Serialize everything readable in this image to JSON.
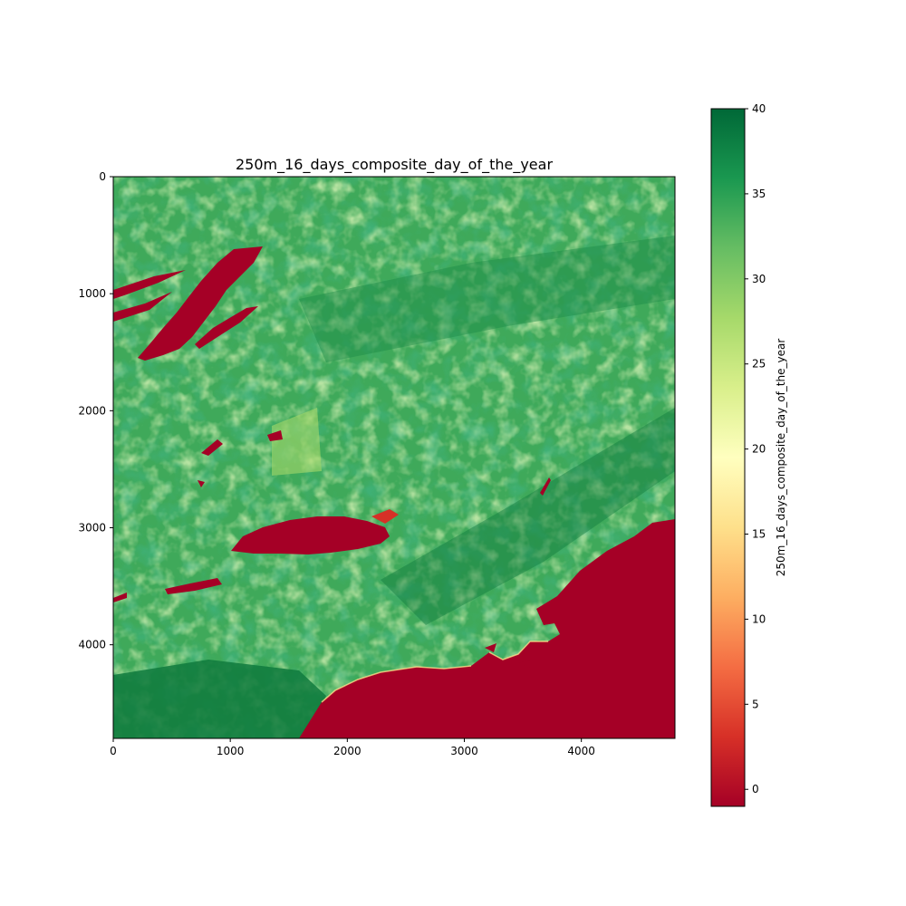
{
  "chart_data": {
    "type": "heatmap",
    "title": "250m_16_days_composite_day_of_the_year",
    "xlabel": "",
    "ylabel": "",
    "xlim": [
      0,
      4800
    ],
    "ylim": [
      4800,
      0
    ],
    "x_ticks": [
      0,
      1000,
      2000,
      3000,
      4000
    ],
    "y_ticks": [
      0,
      1000,
      2000,
      3000,
      4000
    ],
    "x_tick_labels": [
      "0",
      "1000",
      "2000",
      "3000",
      "4000"
    ],
    "y_tick_labels": [
      "0",
      "1000",
      "2000",
      "3000",
      "4000"
    ],
    "colormap": "RdYlGn",
    "colorbar": {
      "label": "250m_16_days_composite_day_of_the_year",
      "vmin": -1,
      "vmax": 40,
      "ticks": [
        0,
        5,
        10,
        15,
        20,
        25,
        30,
        35,
        40
      ],
      "tick_labels": [
        "0",
        "5",
        "10",
        "15",
        "20",
        "25",
        "30",
        "35",
        "40"
      ]
    },
    "regions": [
      {
        "name": "background-land",
        "approx_value": 33
      },
      {
        "name": "ocean-southeast",
        "approx_value": -1
      },
      {
        "name": "lake-northwest",
        "approx_value": -1
      },
      {
        "name": "lake-center",
        "approx_value": -1
      },
      {
        "name": "lake-west-strip",
        "approx_value": -1
      },
      {
        "name": "northwest-strip",
        "approx_value": -1
      },
      {
        "name": "dark-forest-southwest",
        "approx_value": 39
      }
    ]
  },
  "colors": {
    "ocean": "#a50026",
    "land_mid": "#3fa95a",
    "land_dark": "#0f7a3d",
    "land_light": "#8fcf6a",
    "land_pale": "#c3e487"
  }
}
